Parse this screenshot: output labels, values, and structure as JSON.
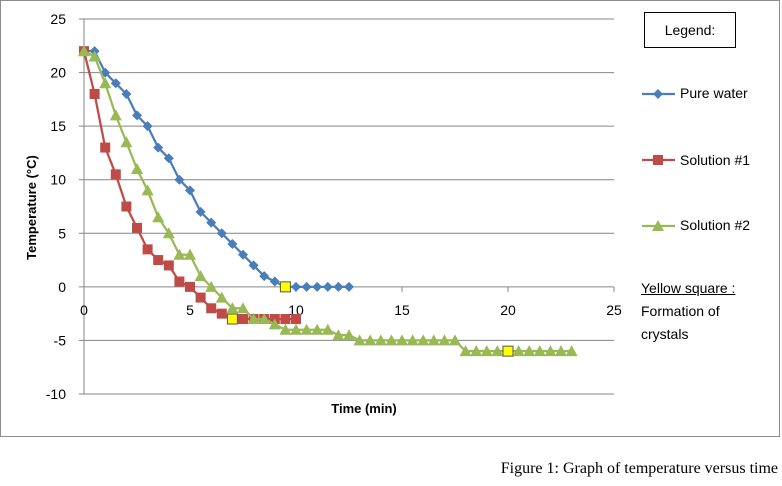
{
  "chart_data": {
    "type": "line",
    "title": "",
    "xlabel": "Time (min)",
    "ylabel": "Temperature (°C)",
    "xlim": [
      0,
      25
    ],
    "ylim": [
      -10,
      25
    ],
    "xticks": [
      0,
      5,
      10,
      15,
      20,
      25
    ],
    "yticks": [
      25,
      20,
      15,
      10,
      5,
      0,
      -5,
      -10
    ],
    "grid": "horizontal",
    "legend_title": "Legend:",
    "legend_position": "right",
    "series": [
      {
        "name": "Pure water",
        "color": "#4a7ebb",
        "marker": "diamond",
        "points": [
          [
            0.0,
            22.0
          ],
          [
            0.5,
            22.0
          ],
          [
            1.0,
            20.0
          ],
          [
            1.5,
            19.0
          ],
          [
            2.0,
            18.0
          ],
          [
            2.5,
            16.0
          ],
          [
            3.0,
            15.0
          ],
          [
            3.5,
            13.0
          ],
          [
            4.0,
            12.0
          ],
          [
            4.5,
            10.0
          ],
          [
            5.0,
            9.0
          ],
          [
            5.5,
            7.0
          ],
          [
            6.0,
            6.0
          ],
          [
            6.5,
            5.0
          ],
          [
            7.0,
            4.0
          ],
          [
            7.5,
            3.0
          ],
          [
            8.0,
            2.0
          ],
          [
            8.5,
            1.0
          ],
          [
            9.0,
            0.5
          ],
          [
            9.5,
            0.0
          ],
          [
            10.0,
            0.0
          ],
          [
            10.5,
            0.0
          ],
          [
            11.0,
            0.0
          ],
          [
            11.5,
            0.0
          ],
          [
            12.0,
            0.0
          ],
          [
            12.5,
            0.0
          ]
        ]
      },
      {
        "name": "Solution #1",
        "color": "#be4b48",
        "marker": "square",
        "points": [
          [
            0.0,
            22.0
          ],
          [
            0.5,
            18.0
          ],
          [
            1.0,
            13.0
          ],
          [
            1.5,
            10.5
          ],
          [
            2.0,
            7.5
          ],
          [
            2.5,
            5.5
          ],
          [
            3.0,
            3.5
          ],
          [
            3.5,
            2.5
          ],
          [
            4.0,
            2.0
          ],
          [
            4.5,
            0.5
          ],
          [
            5.0,
            0.0
          ],
          [
            5.5,
            -1.0
          ],
          [
            6.0,
            -2.0
          ],
          [
            6.5,
            -2.5
          ],
          [
            7.0,
            -3.0
          ],
          [
            7.5,
            -3.0
          ],
          [
            8.0,
            -3.0
          ],
          [
            8.5,
            -3.0
          ],
          [
            9.0,
            -3.0
          ],
          [
            9.5,
            -3.0
          ],
          [
            10.0,
            -3.0
          ]
        ]
      },
      {
        "name": "Solution #2",
        "color": "#98b954",
        "marker": "triangle",
        "points": [
          [
            0.0,
            22.0
          ],
          [
            0.5,
            21.5
          ],
          [
            1.0,
            19.0
          ],
          [
            1.5,
            16.0
          ],
          [
            2.0,
            13.5
          ],
          [
            2.5,
            11.0
          ],
          [
            3.0,
            9.0
          ],
          [
            3.5,
            6.5
          ],
          [
            4.0,
            5.0
          ],
          [
            4.5,
            3.0
          ],
          [
            5.0,
            3.0
          ],
          [
            5.5,
            1.0
          ],
          [
            6.0,
            0.0
          ],
          [
            6.5,
            -1.0
          ],
          [
            7.0,
            -2.0
          ],
          [
            7.5,
            -2.0
          ],
          [
            8.0,
            -3.0
          ],
          [
            8.5,
            -3.0
          ],
          [
            9.0,
            -3.5
          ],
          [
            9.5,
            -4.0
          ],
          [
            10.0,
            -4.0
          ],
          [
            10.5,
            -4.0
          ],
          [
            11.0,
            -4.0
          ],
          [
            11.5,
            -4.0
          ],
          [
            12.0,
            -4.5
          ],
          [
            12.5,
            -4.5
          ],
          [
            13.0,
            -5.0
          ],
          [
            13.5,
            -5.0
          ],
          [
            14.0,
            -5.0
          ],
          [
            14.5,
            -5.0
          ],
          [
            15.0,
            -5.0
          ],
          [
            15.5,
            -5.0
          ],
          [
            16.0,
            -5.0
          ],
          [
            16.5,
            -5.0
          ],
          [
            17.0,
            -5.0
          ],
          [
            17.5,
            -5.0
          ],
          [
            18.0,
            -6.0
          ],
          [
            18.5,
            -6.0
          ],
          [
            19.0,
            -6.0
          ],
          [
            19.5,
            -6.0
          ],
          [
            20.0,
            -6.0
          ],
          [
            20.5,
            -6.0
          ],
          [
            21.0,
            -6.0
          ],
          [
            21.5,
            -6.0
          ],
          [
            22.0,
            -6.0
          ],
          [
            22.5,
            -6.0
          ],
          [
            23.0,
            -6.0
          ]
        ]
      }
    ],
    "crystal_markers": {
      "color": "#ffff00",
      "points": [
        [
          9.5,
          0.0
        ],
        [
          7.0,
          -3.0
        ],
        [
          20.0,
          -6.0
        ]
      ]
    }
  },
  "legend": {
    "title": "Legend:",
    "note_line1": "Yellow square  :",
    "note_line2": "Formation of",
    "note_line3": "crystals"
  },
  "caption": "Figure 1: Graph of temperature versus time",
  "colors": {
    "grid": "#868686",
    "axis": "#868686",
    "frame": "#8c8c8c"
  }
}
